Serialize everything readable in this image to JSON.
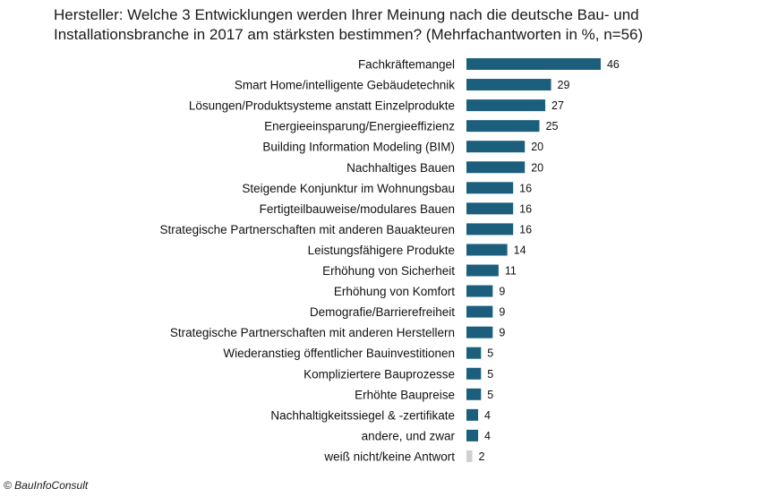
{
  "header": {
    "title_line1": "Hersteller: Welche 3 Entwicklungen  werden Ihrer Meinung  nach die deutsche Bau- und",
    "title_line2": "Installationsbranche  in 2017 am stärksten bestimmen? (Mehrfachantworten in %, n=56)"
  },
  "footer": {
    "copyright": "© BauInfoConsult"
  },
  "colors": {
    "bar": "#1c5f7c",
    "bar_muted": "#d0d0d0"
  },
  "chart_data": {
    "type": "bar",
    "orientation": "horizontal",
    "title": "Hersteller: Welche 3 Entwicklungen  werden Ihrer Meinung  nach die deutsche Bau- und Installationsbranche  in 2017 am stärksten bestimmen? (Mehrfachantworten in %, n=56)",
    "categories": [
      "Fachkräftemangel",
      "Smart Home/intelligente Gebäudetechnik",
      "Lösungen/Produktsysteme anstatt Einzelprodukte",
      "Energieeinsparung/Energieeffizienz",
      "Building Information Modeling (BIM)",
      "Nachhaltiges Bauen",
      "Steigende Konjunktur im Wohnungsbau",
      "Fertigteilbauweise/modulares Bauen",
      "Strategische Partnerschaften mit anderen Bauakteuren",
      "Leistungsfähigere Produkte",
      "Erhöhung von Sicherheit",
      "Erhöhung von Komfort",
      "Demografie/Barrierefreiheit",
      "Strategische Partnerschaften mit anderen Herstellern",
      "Wiederanstieg öffentlicher Bauinvestitionen",
      "Kompliziertere Bauprozesse",
      "Erhöhte Baupreise",
      "Nachhaltigkeitssiegel & -zertifikate",
      "andere, und zwar",
      "weiß nicht/keine Antwort"
    ],
    "values": [
      46,
      29,
      27,
      25,
      20,
      20,
      16,
      16,
      16,
      14,
      11,
      9,
      9,
      9,
      5,
      5,
      5,
      4,
      4,
      2
    ],
    "highlight": [
      false,
      false,
      false,
      false,
      false,
      false,
      false,
      false,
      false,
      false,
      false,
      false,
      false,
      false,
      false,
      false,
      false,
      false,
      false,
      true
    ],
    "xlim": [
      0,
      46
    ],
    "grid": false,
    "legend": "none"
  }
}
